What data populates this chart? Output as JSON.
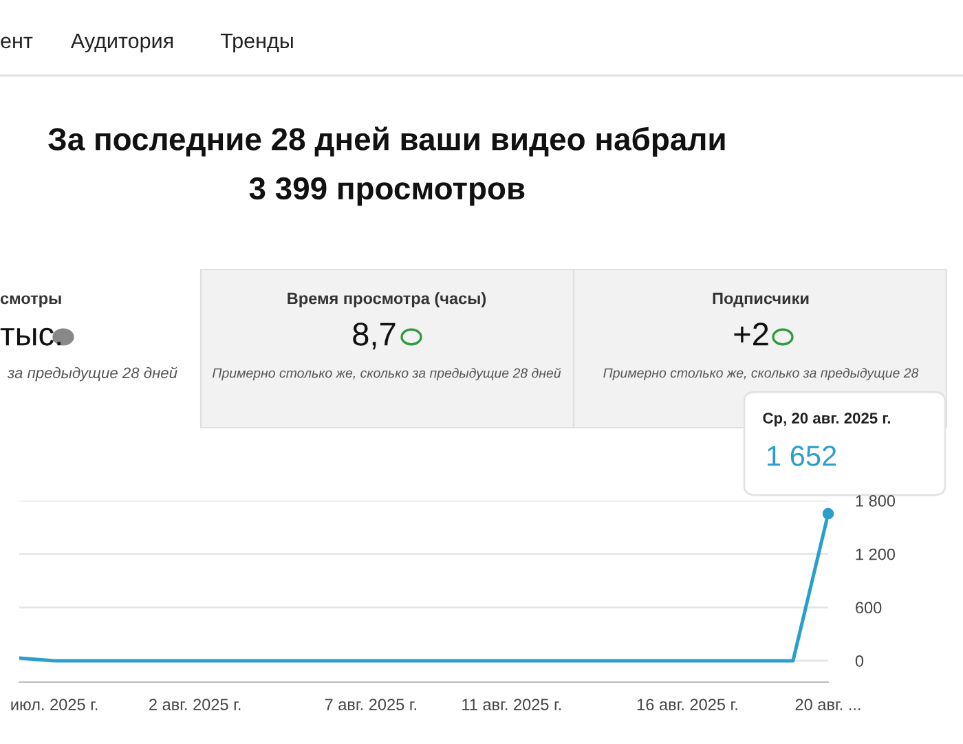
{
  "chart_data": {
    "type": "line",
    "title": "За последние 28 дней ваши видео набрали",
    "subtitle": "3 399 просмотров",
    "x": [
      "2025-07-28",
      "2025-07-29",
      "2025-07-30",
      "2025-07-31",
      "2025-08-01",
      "2025-08-02",
      "2025-08-03",
      "2025-08-04",
      "2025-08-05",
      "2025-08-06",
      "2025-08-07",
      "2025-08-08",
      "2025-08-09",
      "2025-08-10",
      "2025-08-11",
      "2025-08-12",
      "2025-08-13",
      "2025-08-14",
      "2025-08-15",
      "2025-08-16",
      "2025-08-17",
      "2025-08-18",
      "2025-08-19",
      "2025-08-20"
    ],
    "series": [
      {
        "color": "#2a9fcc",
        "values": [
          30,
          0,
          0,
          0,
          0,
          0,
          0,
          0,
          0,
          0,
          0,
          0,
          0,
          0,
          0,
          0,
          0,
          0,
          0,
          0,
          0,
          0,
          0,
          1652
        ]
      }
    ],
    "xlim": [
      "2025-07-28",
      "2025-08-20"
    ],
    "xticks": [
      {
        "value": "2025-07-29",
        "label": "июл. 2025 г."
      },
      {
        "value": "2025-08-02",
        "label": "2 авг. 2025 г."
      },
      {
        "value": "2025-08-07",
        "label": "7 авг. 2025 г."
      },
      {
        "value": "2025-08-11",
        "label": "11 авг. 2025 г."
      },
      {
        "value": "2025-08-16",
        "label": "16 авг. 2025 г."
      },
      {
        "value": "2025-08-20",
        "label": "20 авг. ..."
      }
    ],
    "ylim": [
      -240,
      1800
    ],
    "yticks": [
      0,
      {
        "value": 600,
        "label": "600"
      },
      {
        "value": 1200,
        "label": "1 200"
      },
      {
        "value": 1800,
        "label": "1 800"
      }
    ],
    "grid": "y",
    "line_style": "solid",
    "marker": "none",
    "annotations": [
      "ент",
      "Аудитория",
      "Тренды",
      "смотры",
      "тыс.",
      "за предыдущие 28 дней",
      "Время просмотра (часы)",
      "8,7",
      "Примерно столько же, сколько за предыдущие 28 дней",
      "Подписчики",
      "+2",
      "Примерно столько же, сколько за предыдущие 28",
      "Ср, 20 авг. 2025 г.",
      {
        "text": "1 652",
        "x": "2025-08-20",
        "y": 1652
      }
    ]
  }
}
